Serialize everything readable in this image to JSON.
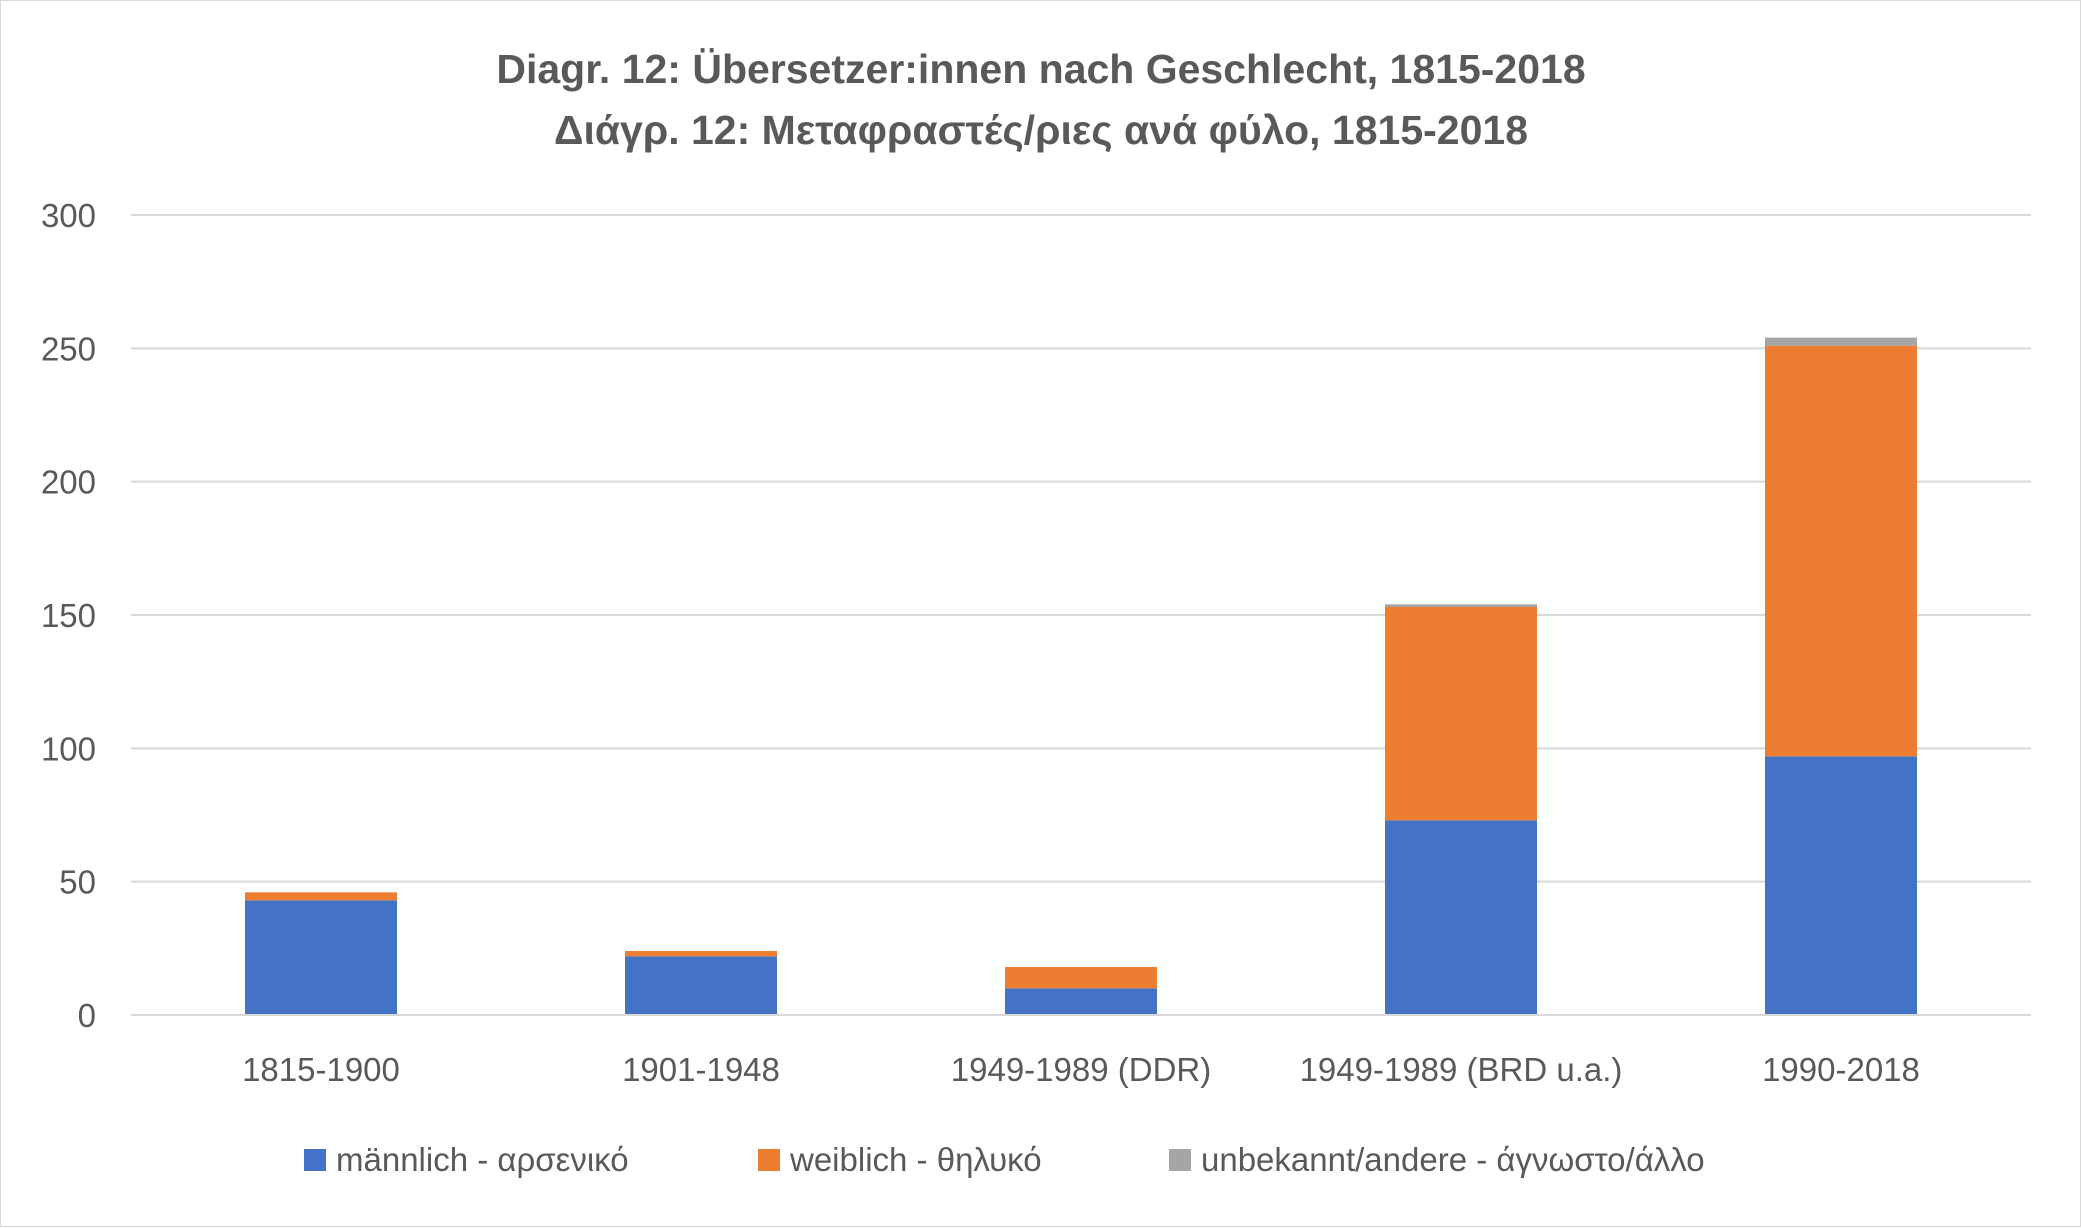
{
  "chart_data": {
    "type": "bar",
    "stacked": true,
    "title": "Diagr. 12: Übersetzer:innen nach Geschlecht, 1815-2018",
    "subtitle": "Διάγρ. 12: Μεταφραστές/ριες ανά φύλο, 1815-2018",
    "categories": [
      "1815-1900",
      "1901-1948",
      "1949-1989 (DDR)",
      "1949-1989 (BRD u.a.)",
      "1990-2018"
    ],
    "series": [
      {
        "name": "männlich - αρσενικό",
        "color": "#4472c4",
        "values": [
          43,
          22,
          10,
          73,
          97
        ]
      },
      {
        "name": "weiblich - θηλυκό",
        "color": "#ed7d31",
        "values": [
          3,
          2,
          8,
          80,
          154
        ]
      },
      {
        "name": "unbekannt/andere - άγνωστο/άλλο",
        "color": "#a5a5a5",
        "values": [
          0,
          0,
          0,
          1,
          3
        ]
      }
    ],
    "ylim": [
      0,
      300
    ],
    "yticks": [
      "0",
      "50",
      "100",
      "150",
      "200",
      "250",
      "300"
    ],
    "grid": true,
    "legend_position": "bottom"
  }
}
